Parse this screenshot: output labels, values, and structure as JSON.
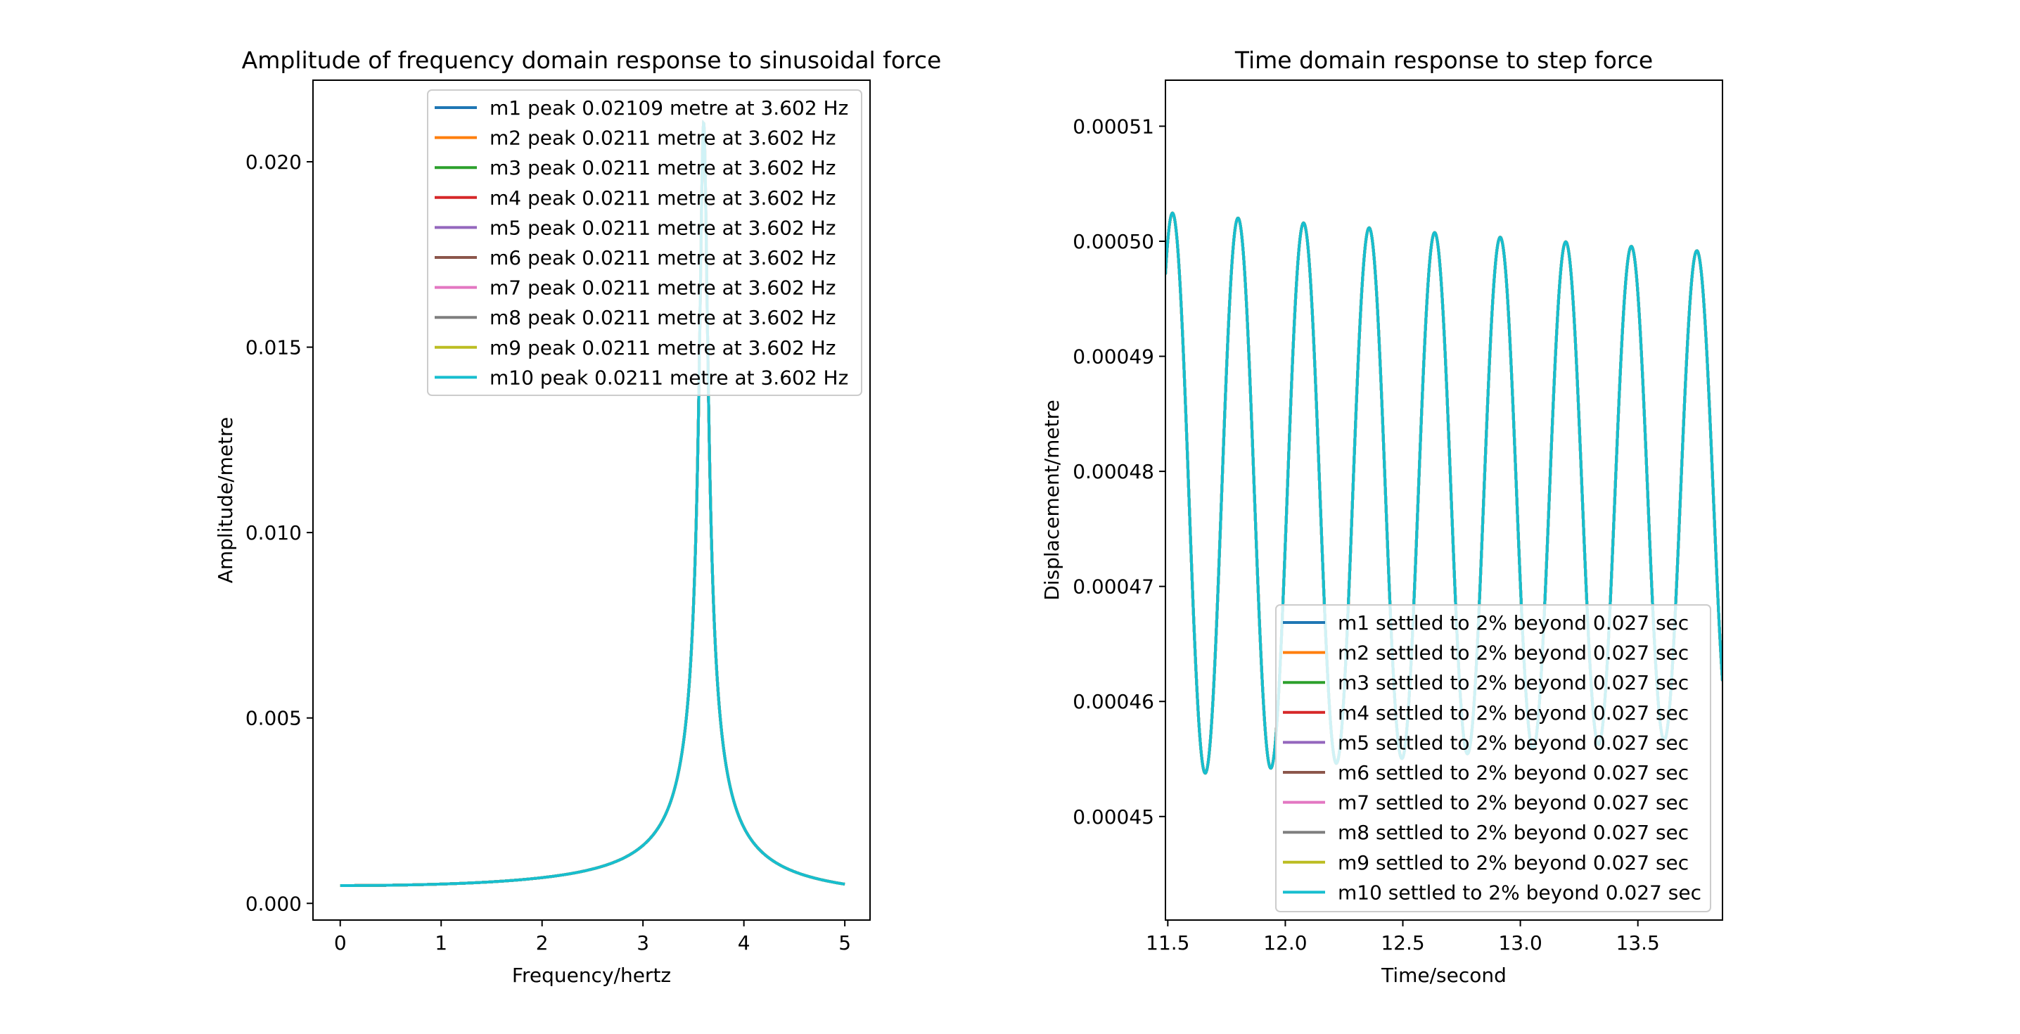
{
  "chart_data": [
    {
      "type": "line",
      "title": "Amplitude of frequency domain response to sinusoidal force",
      "xlabel": "Frequency/hertz",
      "ylabel": "Amplitude/metre",
      "xlim": [
        -0.27,
        5.25
      ],
      "ylim": [
        -0.00045,
        0.0222
      ],
      "xticks": [
        0,
        1,
        2,
        3,
        4,
        5
      ],
      "xtick_labels": [
        "0",
        "1",
        "2",
        "3",
        "4",
        "5"
      ],
      "yticks": [
        0.0,
        0.005,
        0.01,
        0.015,
        0.02
      ],
      "ytick_labels": [
        "0.000",
        "0.005",
        "0.010",
        "0.015",
        "0.020"
      ],
      "grid": false,
      "legend_position": "top-right",
      "model": {
        "kind": "resonance",
        "f0": 3.602,
        "zeta": 0.0114,
        "static": 0.00048
      },
      "series": [
        {
          "name": "m1 peak 0.02109 metre at 3.602 Hz",
          "color": "#1f77b4"
        },
        {
          "name": "m2 peak 0.0211 metre at 3.602 Hz",
          "color": "#ff7f0e"
        },
        {
          "name": "m3 peak 0.0211 metre at 3.602 Hz",
          "color": "#2ca02c"
        },
        {
          "name": "m4 peak 0.0211 metre at 3.602 Hz",
          "color": "#d62728"
        },
        {
          "name": "m5 peak 0.0211 metre at 3.602 Hz",
          "color": "#9467bd"
        },
        {
          "name": "m6 peak 0.0211 metre at 3.602 Hz",
          "color": "#8c564b"
        },
        {
          "name": "m7 peak 0.0211 metre at 3.602 Hz",
          "color": "#e377c2"
        },
        {
          "name": "m8 peak 0.0211 metre at 3.602 Hz",
          "color": "#7f7f7f"
        },
        {
          "name": "m9 peak 0.0211 metre at 3.602 Hz",
          "color": "#bcbd22"
        },
        {
          "name": "m10 peak 0.0211 metre at 3.602 Hz",
          "color": "#17becf"
        }
      ]
    },
    {
      "type": "line",
      "title": "Time domain response to step force",
      "xlabel": "Time/second",
      "ylabel": "Displacement/metre",
      "xlim": [
        11.49,
        13.86
      ],
      "ylim": [
        0.000441,
        0.000514
      ],
      "xticks": [
        11.5,
        12.0,
        12.5,
        13.0,
        13.5
      ],
      "xtick_labels": [
        "11.5",
        "12.0",
        "12.5",
        "13.0",
        "13.5"
      ],
      "yticks": [
        0.00045,
        0.00046,
        0.00047,
        0.00048,
        0.00049,
        0.0005,
        0.00051
      ],
      "ytick_labels": [
        "0.00045",
        "0.00046",
        "0.00047",
        "0.00048",
        "0.00049",
        "0.00050",
        "0.00051"
      ],
      "grid": false,
      "legend_position": "bottom-right",
      "model": {
        "kind": "damped-oscillation",
        "t0": 11.49,
        "mean": 0.000478,
        "amp0": 2.45e-05,
        "decay": 0.0645,
        "period": 0.2789,
        "first_peak": 11.52
      },
      "series": [
        {
          "name": "m1 settled to 2% beyond 0.027 sec",
          "color": "#1f77b4"
        },
        {
          "name": "m2 settled to 2% beyond 0.027 sec",
          "color": "#ff7f0e"
        },
        {
          "name": "m3 settled to 2% beyond 0.027 sec",
          "color": "#2ca02c"
        },
        {
          "name": "m4 settled to 2% beyond 0.027 sec",
          "color": "#d62728"
        },
        {
          "name": "m5 settled to 2% beyond 0.027 sec",
          "color": "#9467bd"
        },
        {
          "name": "m6 settled to 2% beyond 0.027 sec",
          "color": "#8c564b"
        },
        {
          "name": "m7 settled to 2% beyond 0.027 sec",
          "color": "#e377c2"
        },
        {
          "name": "m8 settled to 2% beyond 0.027 sec",
          "color": "#7f7f7f"
        },
        {
          "name": "m9 settled to 2% beyond 0.027 sec",
          "color": "#bcbd22"
        },
        {
          "name": "m10 settled to 2% beyond 0.027 sec",
          "color": "#17becf"
        }
      ]
    }
  ]
}
